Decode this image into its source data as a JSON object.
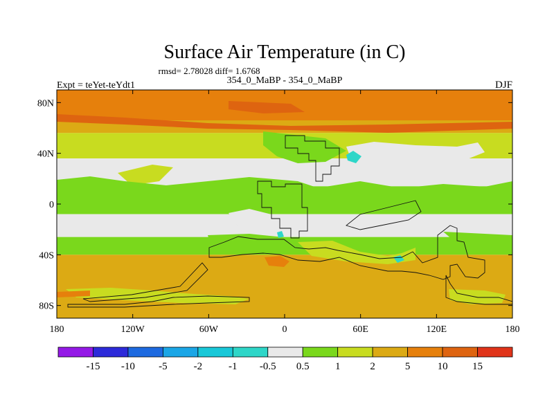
{
  "chart_data": {
    "type": "heatmap",
    "title": "Surface Air Temperature (in C)",
    "stats_line": "rmsd= 2.78028 diff= 1.6768",
    "subtitle": "354_0_MaBP - 354_0_MaBP",
    "left_label": "Expt = teYet-teYdt1",
    "right_label": "DJF",
    "xaxis_ticks": [
      "180",
      "120W",
      "60W",
      "0",
      "60E",
      "120E",
      "180"
    ],
    "xaxis_values": [
      -180,
      -120,
      -60,
      0,
      60,
      120,
      180
    ],
    "yaxis_ticks": [
      "80N",
      "40N",
      "0",
      "40S",
      "80S"
    ],
    "yaxis_values": [
      80,
      40,
      0,
      -40,
      -80
    ],
    "xlim": [
      -180,
      180
    ],
    "ylim": [
      -90,
      90
    ],
    "colorbar": {
      "labels": [
        "-15",
        "-10",
        "-5",
        "-2",
        "-1",
        "-0.5",
        "0.5",
        "1",
        "2",
        "5",
        "10",
        "15"
      ],
      "bins": [
        "< -15",
        "-15 to -10",
        "-10 to -5",
        "-5 to -2",
        "-2 to -1",
        "-1 to -0.5",
        "-0.5 to 0.5",
        "0.5 to 1",
        "1 to 2",
        "2 to 5",
        "5 to 10",
        "10 to 15",
        "> 15"
      ],
      "colors": [
        "#9419e6",
        "#2d2ad9",
        "#1d6ae0",
        "#1ba6e6",
        "#19c8d8",
        "#2ed6c8",
        "#e9e9e9",
        "#7ad81c",
        "#c8dc20",
        "#dcaa14",
        "#e6800c",
        "#de6410",
        "#e0341a"
      ]
    },
    "zonal_bands": [
      {
        "lat": [
          66,
          90
        ],
        "bin": "5 to 10"
      },
      {
        "lat": [
          56,
          66
        ],
        "bin": "2 to 5"
      },
      {
        "lat": [
          36,
          56
        ],
        "bin": "1 to 2"
      },
      {
        "lat": [
          14,
          36
        ],
        "bin": "-0.5 to 0.5"
      },
      {
        "lat": [
          -8,
          14
        ],
        "bin": "0.5 to 1"
      },
      {
        "lat": [
          -26,
          -8
        ],
        "bin": "-0.5 to 0.5"
      },
      {
        "lat": [
          -40,
          -26
        ],
        "bin": "0.5 to 1"
      },
      {
        "lat": [
          -90,
          -40
        ],
        "bin": "2 to 5"
      }
    ]
  }
}
